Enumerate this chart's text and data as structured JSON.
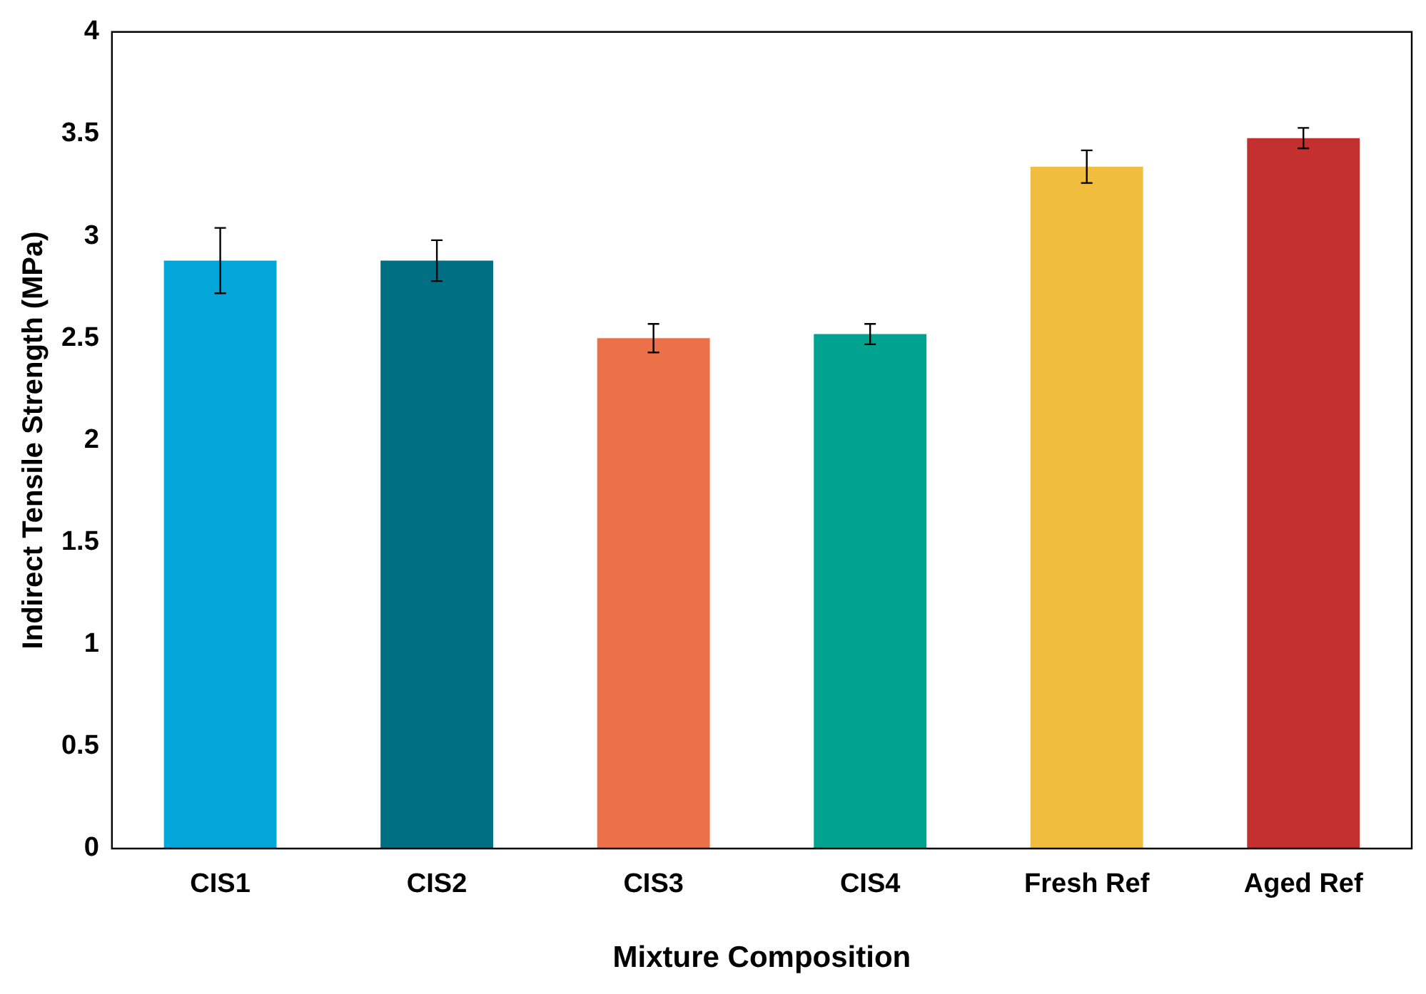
{
  "chart_data": {
    "type": "bar",
    "xlabel": "Mixture Composition",
    "ylabel": "Indirect Tensile Strength (MPa)",
    "categories": [
      "CIS1",
      "CIS2",
      "CIS3",
      "CIS4",
      "Fresh Ref",
      "Aged Ref"
    ],
    "values": [
      2.88,
      2.88,
      2.5,
      2.52,
      3.34,
      3.48
    ],
    "errors": [
      0.16,
      0.1,
      0.07,
      0.05,
      0.08,
      0.05
    ],
    "colors": [
      "#02a6d8",
      "#006f84",
      "#ec7149",
      "#00a390",
      "#f1bd3e",
      "#c3302f"
    ],
    "ylim": [
      0,
      4
    ],
    "yticks": [
      0,
      {
        "value": 0.5,
        "label": "0.5"
      },
      1,
      {
        "value": 1.5,
        "label": "1.5"
      },
      2,
      {
        "value": 2.5,
        "label": "2.5"
      },
      3,
      {
        "value": 3.5,
        "label": "3.5"
      },
      4
    ],
    "grid": false,
    "legend": false
  }
}
